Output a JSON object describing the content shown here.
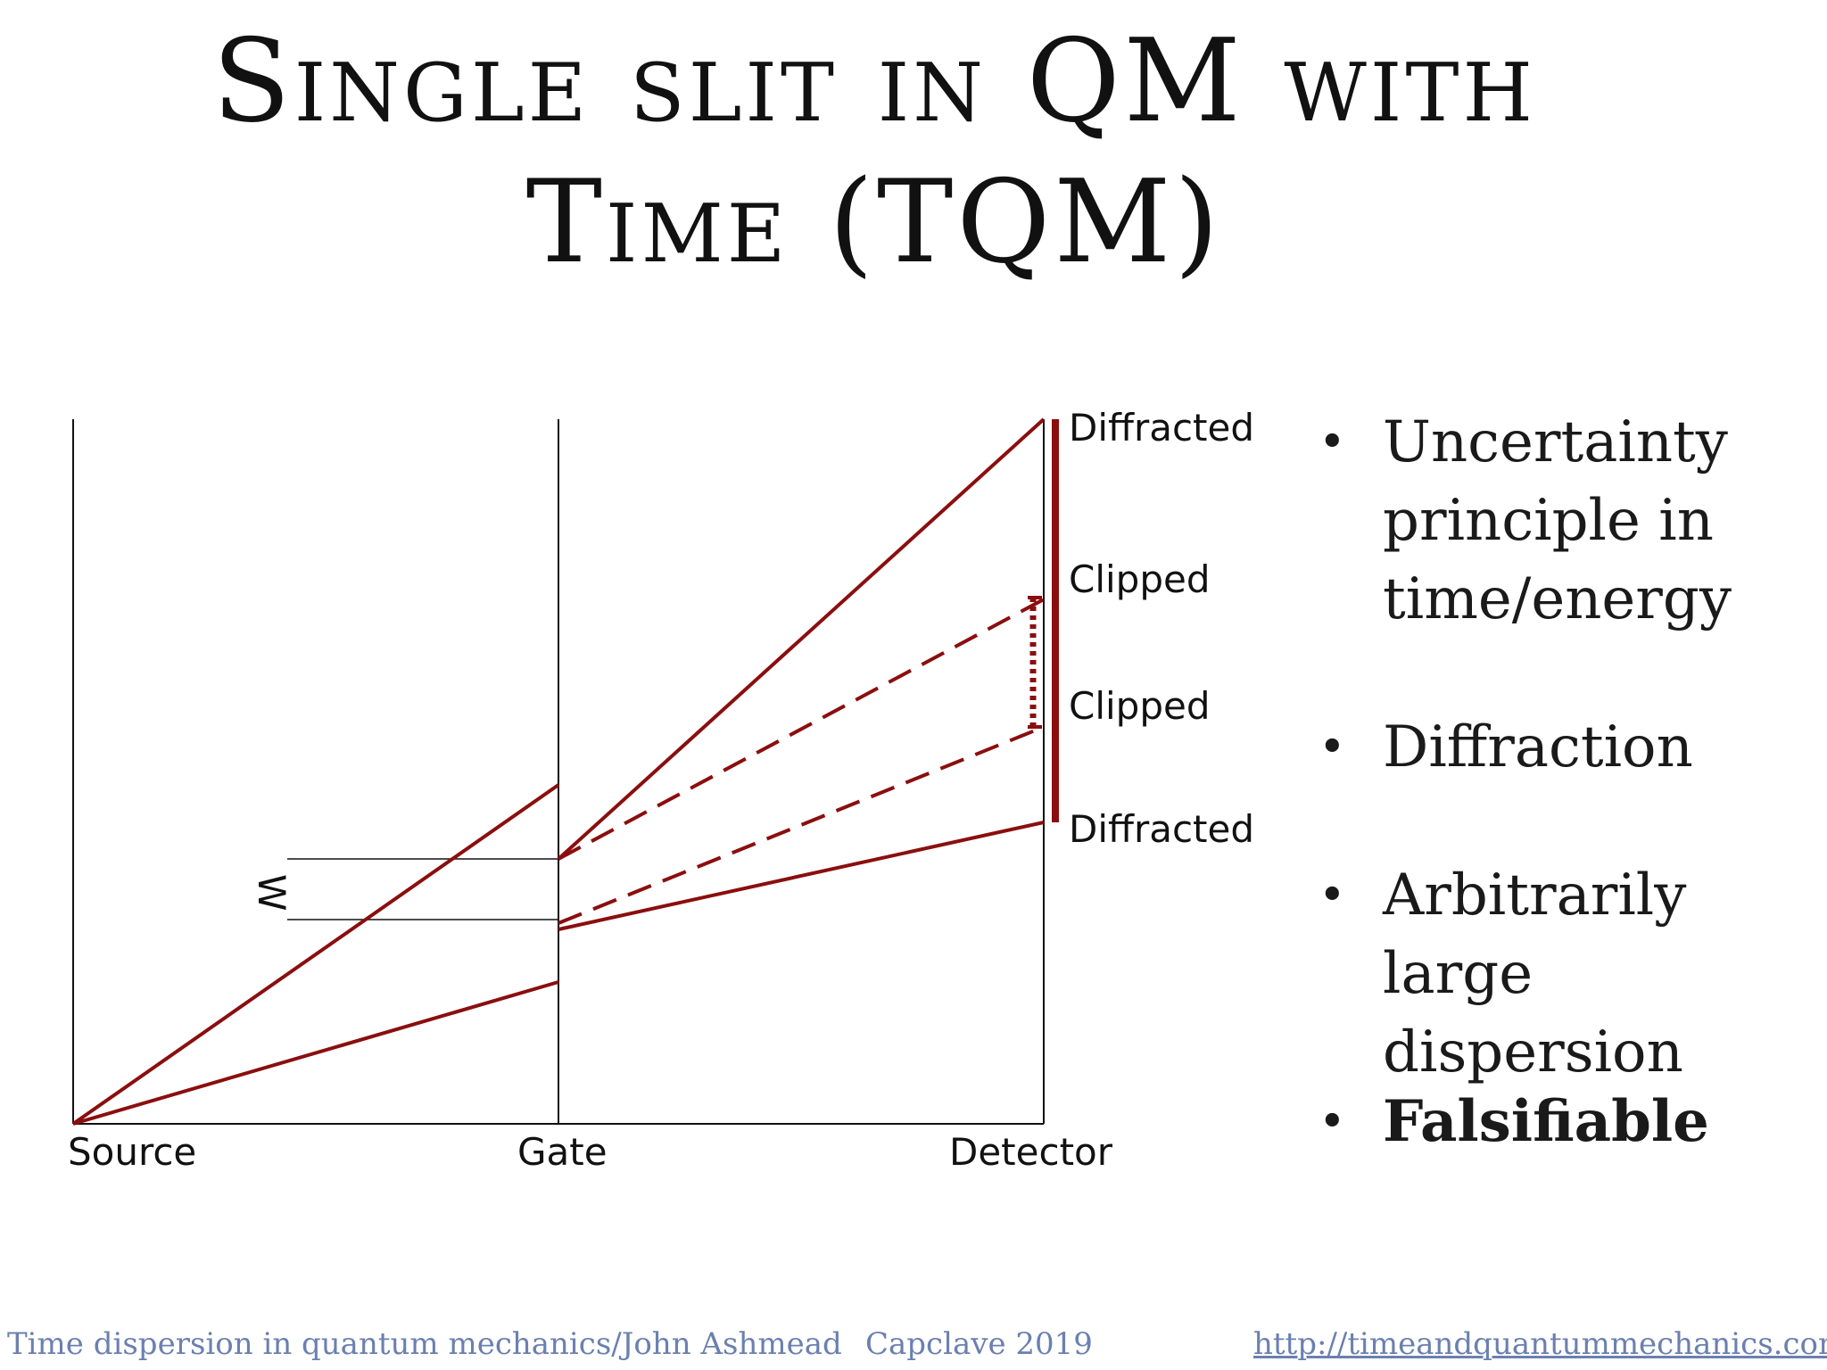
{
  "title": {
    "line1": "Single slit in QM with",
    "line2": "Time (TQM)"
  },
  "diagram": {
    "labels": {
      "source": "Source",
      "gate": "Gate",
      "detector": "Detector",
      "width": "W",
      "diffracted_top": "Diffracted",
      "clipped_top": "Clipped",
      "clipped_bottom": "Clipped",
      "diffracted_bottom": "Diffracted"
    },
    "colors": {
      "ray": "#8b0e0e",
      "frame": "#111111"
    }
  },
  "bullets": [
    {
      "text": "Uncertainty principle in time/energy"
    },
    {
      "text": "Diffraction"
    },
    {
      "text": "Arbitrarily large dispersion"
    },
    {
      "text": "Falsifiable",
      "bold": true
    }
  ],
  "footer": {
    "left": "Time dispersion in quantum mechanics/John Ashmead",
    "center": "Capclave 2019",
    "link": "http://timeandquantummechanics.com"
  }
}
